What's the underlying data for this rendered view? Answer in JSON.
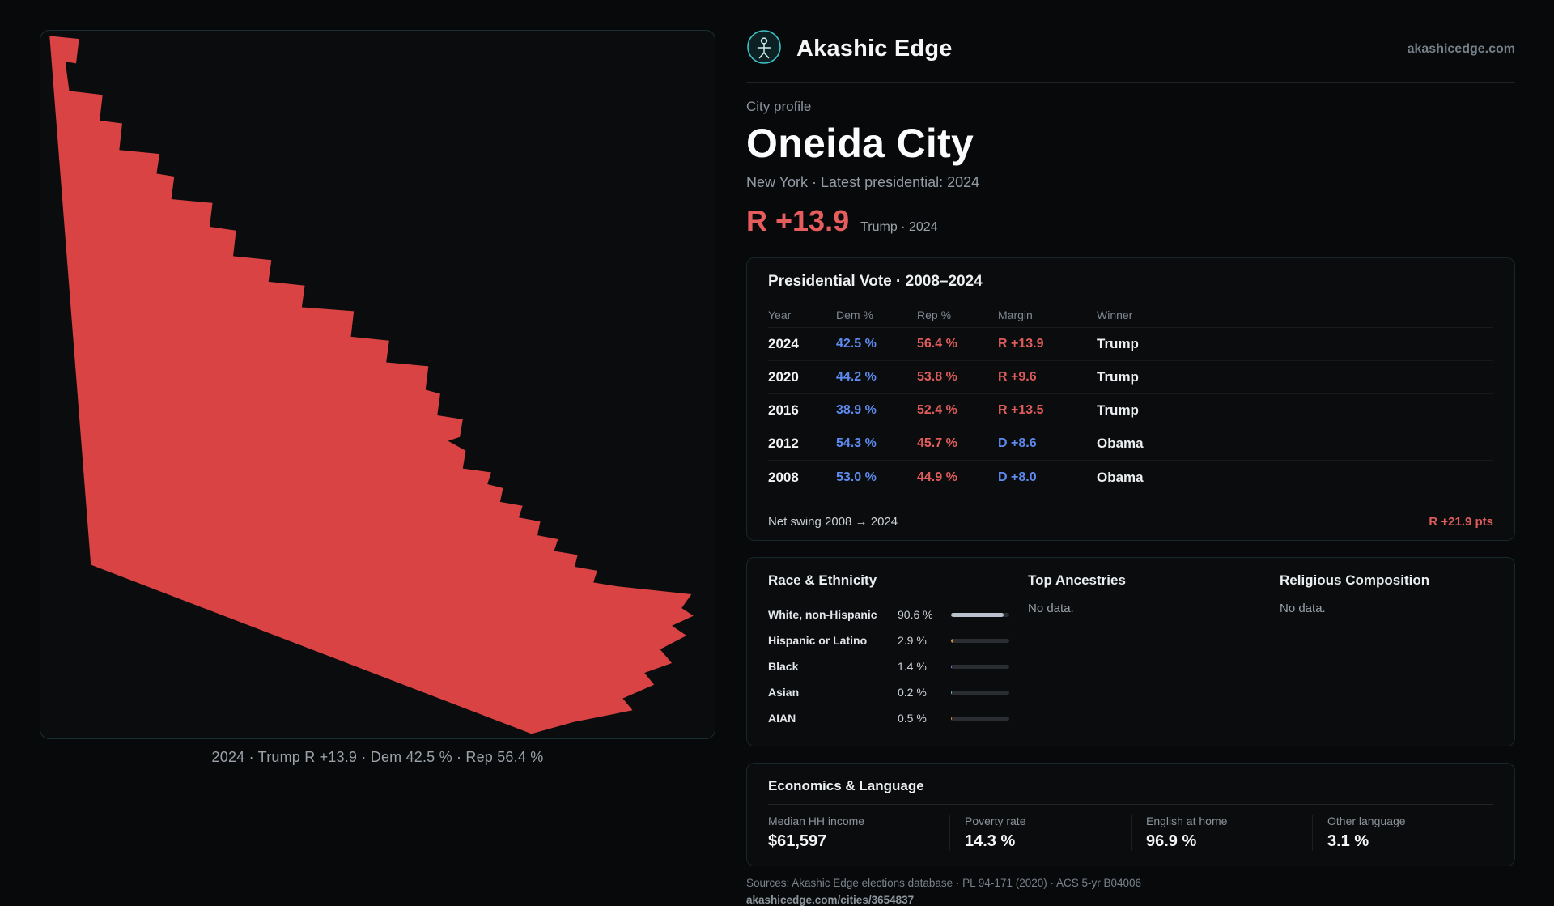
{
  "header": {
    "brand": "Akashic Edge",
    "site": "akashicedge.com"
  },
  "profile": {
    "eyebrow": "City profile",
    "title": "Oneida City",
    "subtitle": "New York · Latest presidential: 2024",
    "headline_margin": "R +13.9",
    "headline_context": "Trump · 2024"
  },
  "map": {
    "caption": "2024 · Trump R +13.9 · Dem 42.5 % · Rep 56.4 %",
    "fill_color": "#da4343"
  },
  "vote_card": {
    "title": "Presidential Vote · 2008–2024",
    "columns": [
      "Year",
      "Dem %",
      "Rep %",
      "Margin",
      "Winner"
    ],
    "rows": [
      {
        "year": "2024",
        "dem": "42.5 %",
        "rep": "56.4 %",
        "margin": "R +13.9",
        "margin_party": "R",
        "winner": "Trump"
      },
      {
        "year": "2020",
        "dem": "44.2 %",
        "rep": "53.8 %",
        "margin": "R +9.6",
        "margin_party": "R",
        "winner": "Trump"
      },
      {
        "year": "2016",
        "dem": "38.9 %",
        "rep": "52.4 %",
        "margin": "R +13.5",
        "margin_party": "R",
        "winner": "Trump"
      },
      {
        "year": "2012",
        "dem": "54.3 %",
        "rep": "45.7 %",
        "margin": "D +8.6",
        "margin_party": "D",
        "winner": "Obama"
      },
      {
        "year": "2008",
        "dem": "53.0 %",
        "rep": "44.9 %",
        "margin": "D +8.0",
        "margin_party": "D",
        "winner": "Obama"
      }
    ],
    "footer_label": "Net swing 2008 → 2024",
    "footer_value": "R +21.9 pts"
  },
  "demographics": {
    "race_title": "Race & Ethnicity",
    "race_rows": [
      {
        "label": "White, non-Hispanic",
        "value": "90.6 %",
        "pct": 90.6,
        "color": "#b9c2cc"
      },
      {
        "label": "Hispanic or Latino",
        "value": "2.9 %",
        "pct": 2.9,
        "color": "#d9913a"
      },
      {
        "label": "Black",
        "value": "1.4 %",
        "pct": 1.4,
        "color": "#8a7df0"
      },
      {
        "label": "Asian",
        "value": "0.2 %",
        "pct": 0.2,
        "color": "#6bc5a0"
      },
      {
        "label": "AIAN",
        "value": "0.5 %",
        "pct": 0.5,
        "color": "#d9913a"
      }
    ],
    "ancestries_title": "Top Ancestries",
    "ancestries_empty": "No data.",
    "religion_title": "Religious Composition",
    "religion_empty": "No data."
  },
  "economics": {
    "title": "Economics & Language",
    "stats": [
      {
        "label": "Median HH income",
        "value": "$61,597"
      },
      {
        "label": "Poverty rate",
        "value": "14.3 %"
      },
      {
        "label": "English at home",
        "value": "96.9 %"
      },
      {
        "label": "Other language",
        "value": "3.1 %"
      }
    ]
  },
  "footer": {
    "sources": "Sources: Akashic Edge elections database · PL 94-171 (2020) · ACS 5-yr B04006",
    "permalink": "akashicedge.com/cities/3654837"
  },
  "colors": {
    "background": "#08090a",
    "card_border_teal": "#2a5e63",
    "accent_red": "#e05c5c",
    "dem_blue": "#5e8bf0",
    "logo_teal": "#3fc1c9",
    "map_fill": "#da4343"
  }
}
